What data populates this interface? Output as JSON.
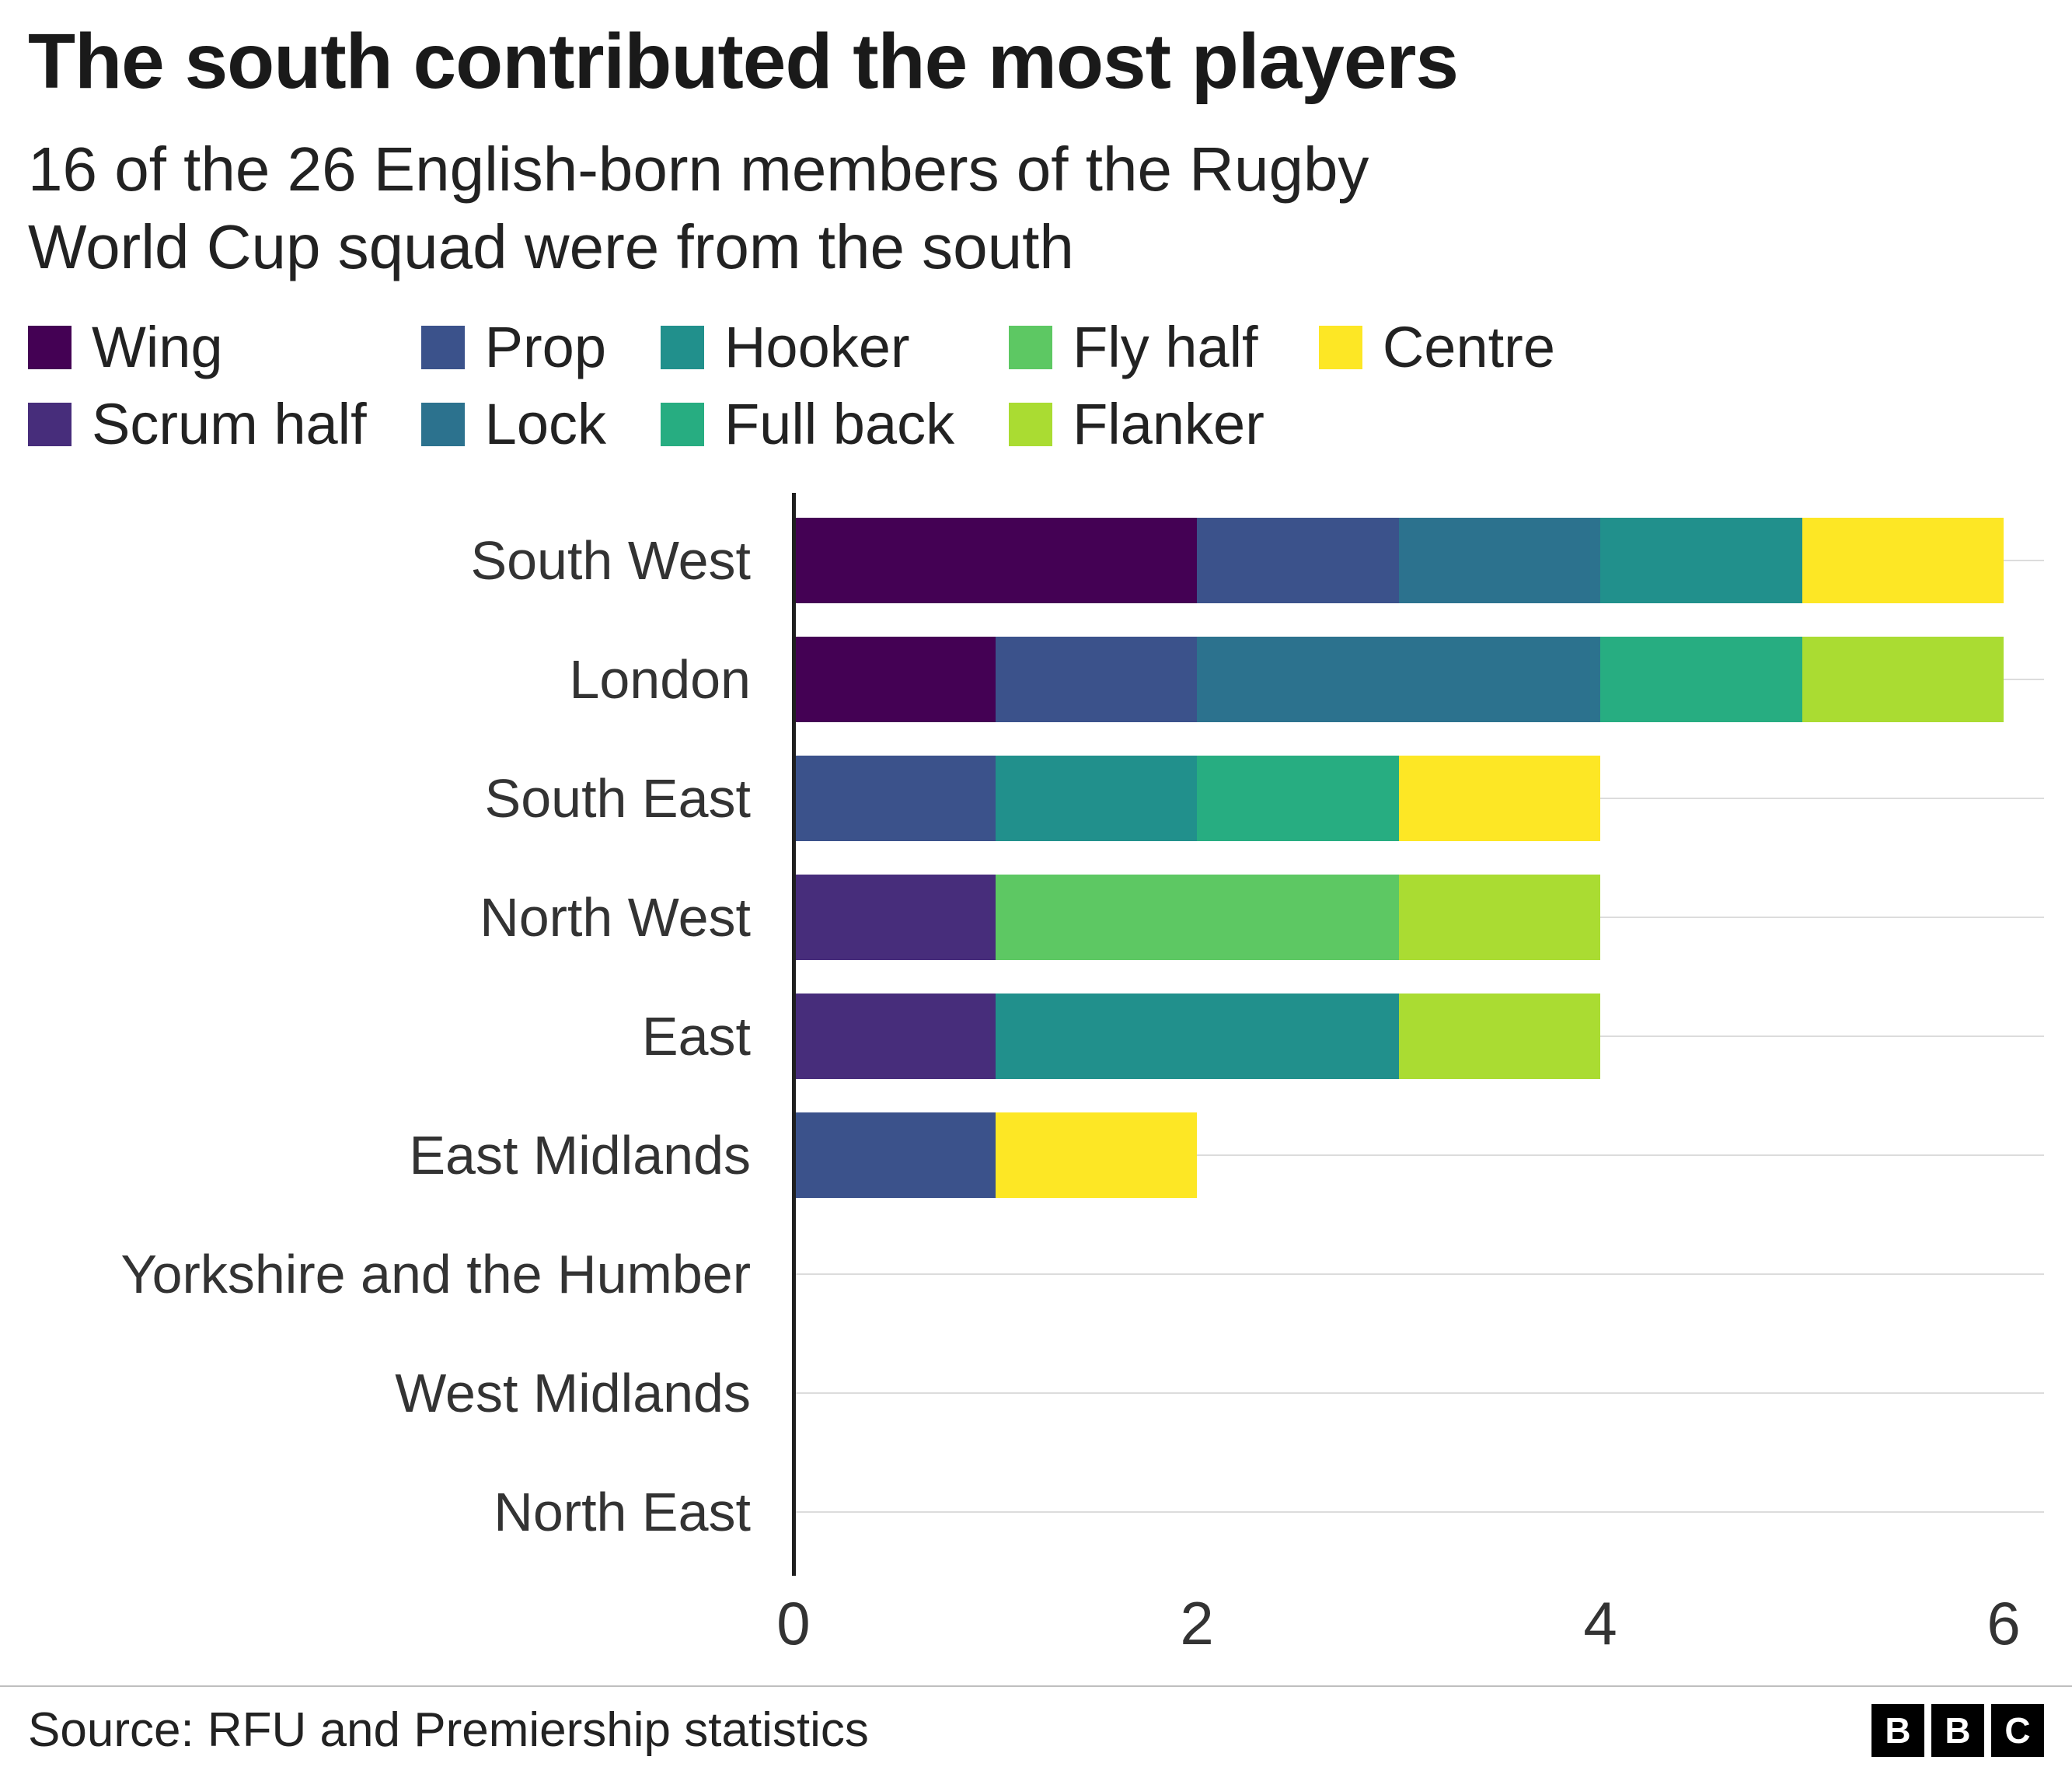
{
  "title": "The south contributed the most players",
  "subtitle": "16 of the 26 English-born members of the Rugby World Cup squad were from the south",
  "legend": [
    {
      "label": "Wing",
      "color": "#440154"
    },
    {
      "label": "Scrum half",
      "color": "#472d7b"
    },
    {
      "label": "Prop",
      "color": "#3b528b"
    },
    {
      "label": "Lock",
      "color": "#2c728e"
    },
    {
      "label": "Hooker",
      "color": "#21908c"
    },
    {
      "label": "Full back",
      "color": "#27ad81"
    },
    {
      "label": "Fly half",
      "color": "#5dc863"
    },
    {
      "label": "Flanker",
      "color": "#aadc32"
    },
    {
      "label": "Centre",
      "color": "#fde725"
    }
  ],
  "chart_data": {
    "type": "bar",
    "orientation": "horizontal",
    "stacked": true,
    "title": "The south contributed the most players",
    "subtitle": "16 of the 26 English-born members of the Rugby World Cup squad were from the south",
    "categories": [
      "South West",
      "London",
      "South East",
      "North West",
      "East",
      "East Midlands",
      "Yorkshire and the Humber",
      "West Midlands",
      "North East"
    ],
    "series": [
      {
        "name": "Wing",
        "color": "#440154",
        "values": [
          2,
          1,
          0,
          0,
          0,
          0,
          0,
          0,
          0
        ]
      },
      {
        "name": "Scrum half",
        "color": "#472d7b",
        "values": [
          0,
          0,
          0,
          1,
          1,
          0,
          0,
          0,
          0
        ]
      },
      {
        "name": "Prop",
        "color": "#3b528b",
        "values": [
          1,
          1,
          1,
          0,
          0,
          1,
          0,
          0,
          0
        ]
      },
      {
        "name": "Lock",
        "color": "#2c728e",
        "values": [
          1,
          2,
          0,
          0,
          0,
          0,
          0,
          0,
          0
        ]
      },
      {
        "name": "Hooker",
        "color": "#21908c",
        "values": [
          1,
          0,
          1,
          0,
          2,
          0,
          0,
          0,
          0
        ]
      },
      {
        "name": "Full back",
        "color": "#27ad81",
        "values": [
          0,
          1,
          1,
          0,
          0,
          0,
          0,
          0,
          0
        ]
      },
      {
        "name": "Fly half",
        "color": "#5dc863",
        "values": [
          0,
          0,
          0,
          2,
          0,
          0,
          0,
          0,
          0
        ]
      },
      {
        "name": "Flanker",
        "color": "#aadc32",
        "values": [
          0,
          1,
          0,
          1,
          1,
          0,
          0,
          0,
          0
        ]
      },
      {
        "name": "Centre",
        "color": "#fde725",
        "values": [
          1,
          0,
          1,
          0,
          0,
          1,
          0,
          0,
          0
        ]
      }
    ],
    "totals": [
      6,
      6,
      4,
      4,
      4,
      2,
      0,
      0,
      0
    ],
    "x_ticks": [
      0,
      2,
      4,
      6
    ],
    "xlim": [
      0,
      6
    ],
    "xlabel": "",
    "ylabel": "",
    "legend_position": "top",
    "grid": "horizontal-row-lines"
  },
  "footer": {
    "source": "Source: RFU and Premiership statistics",
    "logo": [
      "B",
      "B",
      "C"
    ]
  }
}
